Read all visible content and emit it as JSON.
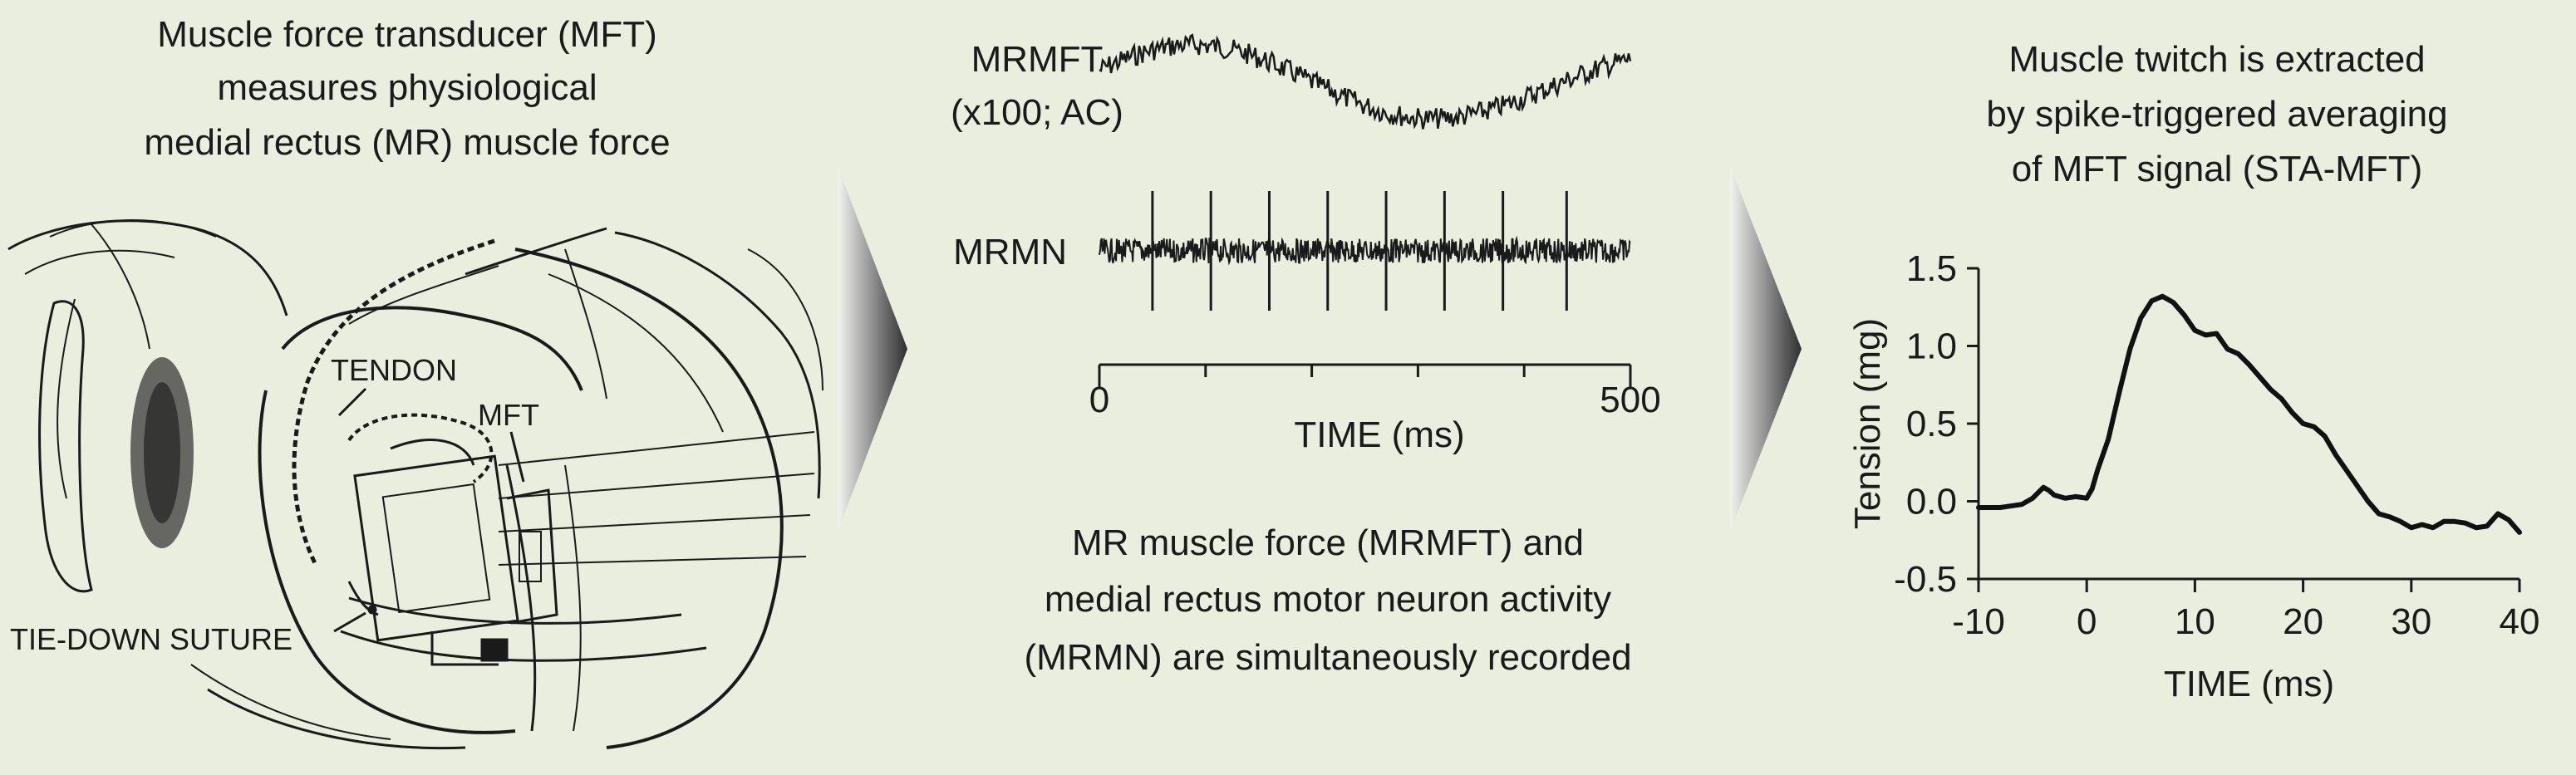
{
  "panel1": {
    "title_lines": [
      "Muscle force transducer (MFT)",
      "measures physiological",
      "medial rectus (MR) muscle force"
    ],
    "labels": {
      "tendon": "TENDON",
      "mft": "MFT",
      "suture": "TIE-DOWN SUTURE"
    }
  },
  "panel2": {
    "trace1_label_lines": [
      "MRMFT",
      "(x100; AC)"
    ],
    "trace2_label": "MRMN",
    "axis": {
      "xlabel": "TIME (ms)",
      "ticks": [
        "0",
        "500"
      ],
      "xlim": [
        0,
        500
      ]
    },
    "spike_times_ms": [
      50,
      105,
      160,
      215,
      270,
      325,
      380,
      440
    ],
    "caption_lines": [
      "MR muscle force (MRMFT) and",
      "medial rectus motor neuron activity",
      "(MRMN) are simultaneously recorded"
    ]
  },
  "panel3": {
    "title_lines": [
      "Muscle twitch is extracted",
      "by spike-triggered averaging",
      "of MFT signal (STA-MFT)"
    ]
  },
  "chart_data": {
    "type": "line",
    "xlabel": "TIME (ms)",
    "ylabel": "Tension (mg)",
    "xlim": [
      -10,
      40
    ],
    "ylim": [
      -0.5,
      1.5
    ],
    "xticks": [
      -10,
      0,
      10,
      20,
      30,
      40
    ],
    "yticks": [
      1.5,
      1.0,
      0.5,
      0.0,
      -0.5
    ],
    "ytick_labels": [
      "1.5",
      "1.0",
      "0.5",
      "0.0",
      "-0.5"
    ],
    "x": [
      -10,
      -8,
      -6,
      -5,
      -4,
      -3.5,
      -3,
      -2,
      -1,
      0,
      0.5,
      1,
      2,
      3,
      4,
      5,
      6,
      7,
      8,
      9,
      10,
      11,
      12,
      13,
      14,
      15,
      16,
      17,
      18,
      19,
      20,
      21,
      22,
      23,
      24,
      25,
      26,
      27,
      28,
      29,
      30,
      31,
      32,
      33,
      34,
      35,
      36,
      37,
      38,
      39,
      40
    ],
    "y": [
      -0.04,
      -0.04,
      -0.02,
      0.02,
      0.09,
      0.07,
      0.04,
      0.02,
      0.03,
      0.02,
      0.08,
      0.2,
      0.4,
      0.7,
      0.98,
      1.18,
      1.29,
      1.32,
      1.28,
      1.2,
      1.1,
      1.07,
      1.08,
      0.98,
      0.95,
      0.88,
      0.8,
      0.72,
      0.66,
      0.57,
      0.5,
      0.48,
      0.42,
      0.3,
      0.2,
      0.1,
      0.0,
      -0.08,
      -0.1,
      -0.13,
      -0.17,
      -0.15,
      -0.17,
      -0.13,
      -0.13,
      -0.14,
      -0.17,
      -0.16,
      -0.08,
      -0.12,
      -0.2
    ]
  }
}
